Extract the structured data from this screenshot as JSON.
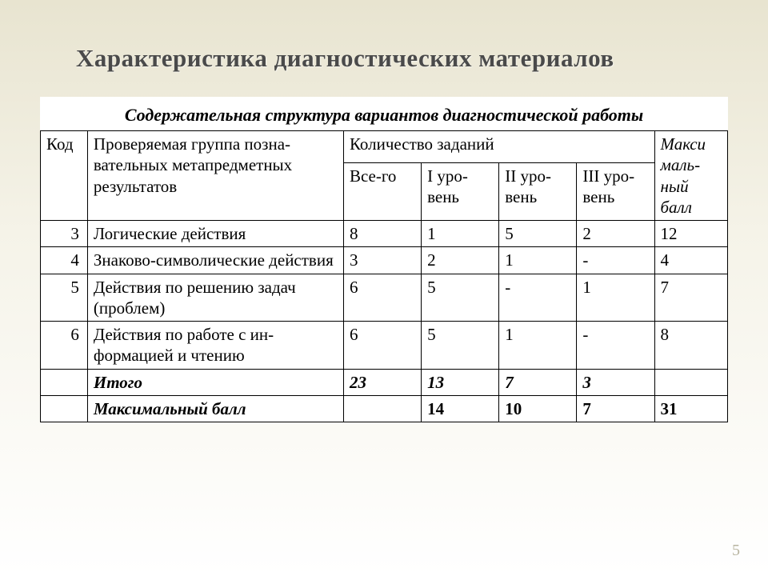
{
  "slide": {
    "title": "Характеристика  диагностических материалов",
    "page_number": "5"
  },
  "table": {
    "caption": "Содержательная структура вариантов диагностической работы",
    "headers": {
      "code": "Код",
      "group": "Проверяемая группа позна-вательных метапредметных результатов",
      "qty_group": "Количество заданий",
      "total": "Все-го",
      "level1": "I уро-вень",
      "level2": "II уро-вень",
      "level3": "III уро-вень",
      "max": "Макси маль-ный балл"
    },
    "rows": [
      {
        "code": "3",
        "group": "Логические действия",
        "total": "8",
        "l1": "1",
        "l2": "5",
        "l3": "2",
        "max": "12"
      },
      {
        "code": "4",
        "group": "Знаково-символические действия",
        "total": "3",
        "l1": "2",
        "l2": "1",
        "l3": "-",
        "max": "4"
      },
      {
        "code": "5",
        "group": "Действия по решению задач (проблем)",
        "total": "6",
        "l1": "5",
        "l2": "-",
        "l3": "1",
        "max": "7"
      },
      {
        "code": "6",
        "group": "Действия по работе с ин-формацией и чтению",
        "total": "6",
        "l1": "5",
        "l2": "1",
        "l3": "-",
        "max": "8"
      }
    ],
    "totals_row": {
      "label": "Итого",
      "total": "23",
      "l1": "13",
      "l2": "7",
      "l3": "3",
      "max": ""
    },
    "max_row": {
      "label": "Максимальный балл",
      "total": "",
      "l1": "14",
      "l2": "10",
      "l3": "7",
      "max": "31"
    }
  },
  "styling": {
    "background_gradient_top": "#e8e4d0",
    "background_gradient_bottom": "#ffffff",
    "title_color": "#4a4a4a",
    "title_fontsize": 31,
    "caption_fontsize": 22,
    "table_fontsize": 21,
    "border_color": "#000000",
    "page_number_color": "#b8b4a0"
  }
}
